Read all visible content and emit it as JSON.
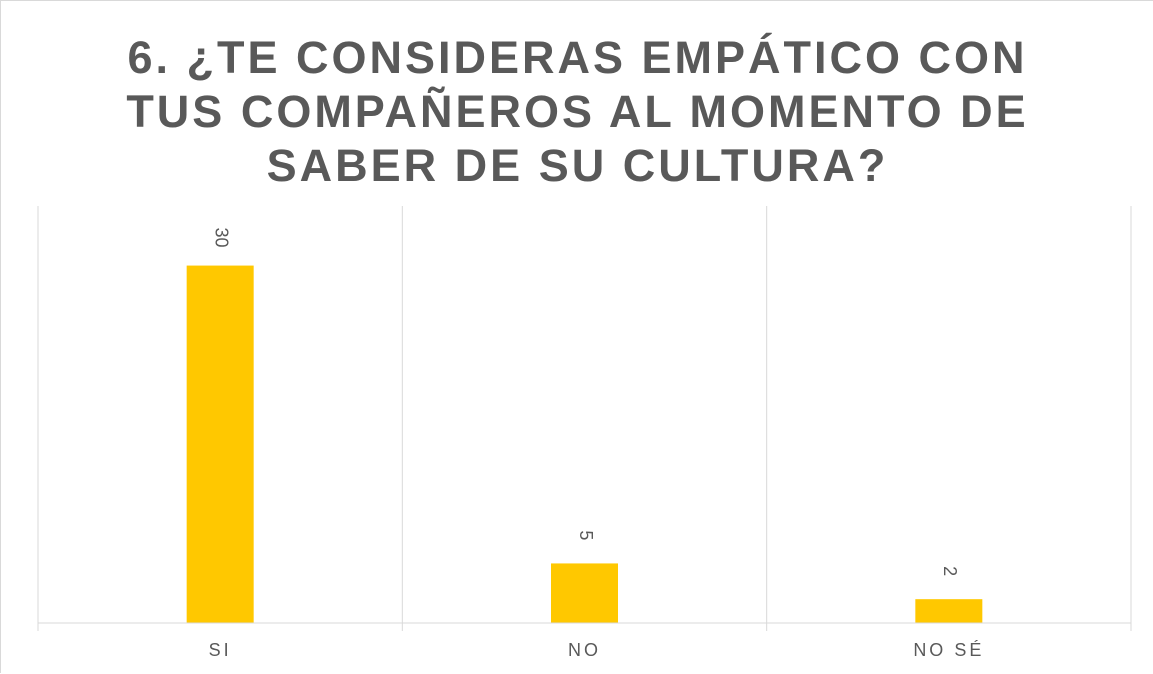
{
  "chart_data": {
    "type": "bar",
    "title_lines": [
      "6. ¿TE CONSIDERAS EMPÁTICO CON",
      "TUS COMPAÑEROS AL MOMENTO DE",
      "SABER DE SU CULTURA?"
    ],
    "categories": [
      "SI",
      "NO",
      "NO SÉ"
    ],
    "values": [
      30,
      5,
      2
    ],
    "data_labels": [
      "30",
      "5",
      "2"
    ],
    "ylim": [
      0,
      35
    ],
    "grid": "vertical category separators",
    "legend": "none",
    "bar_color": "#FFC800",
    "axis_color": "#D9D9D9",
    "text_color": "#595959"
  }
}
